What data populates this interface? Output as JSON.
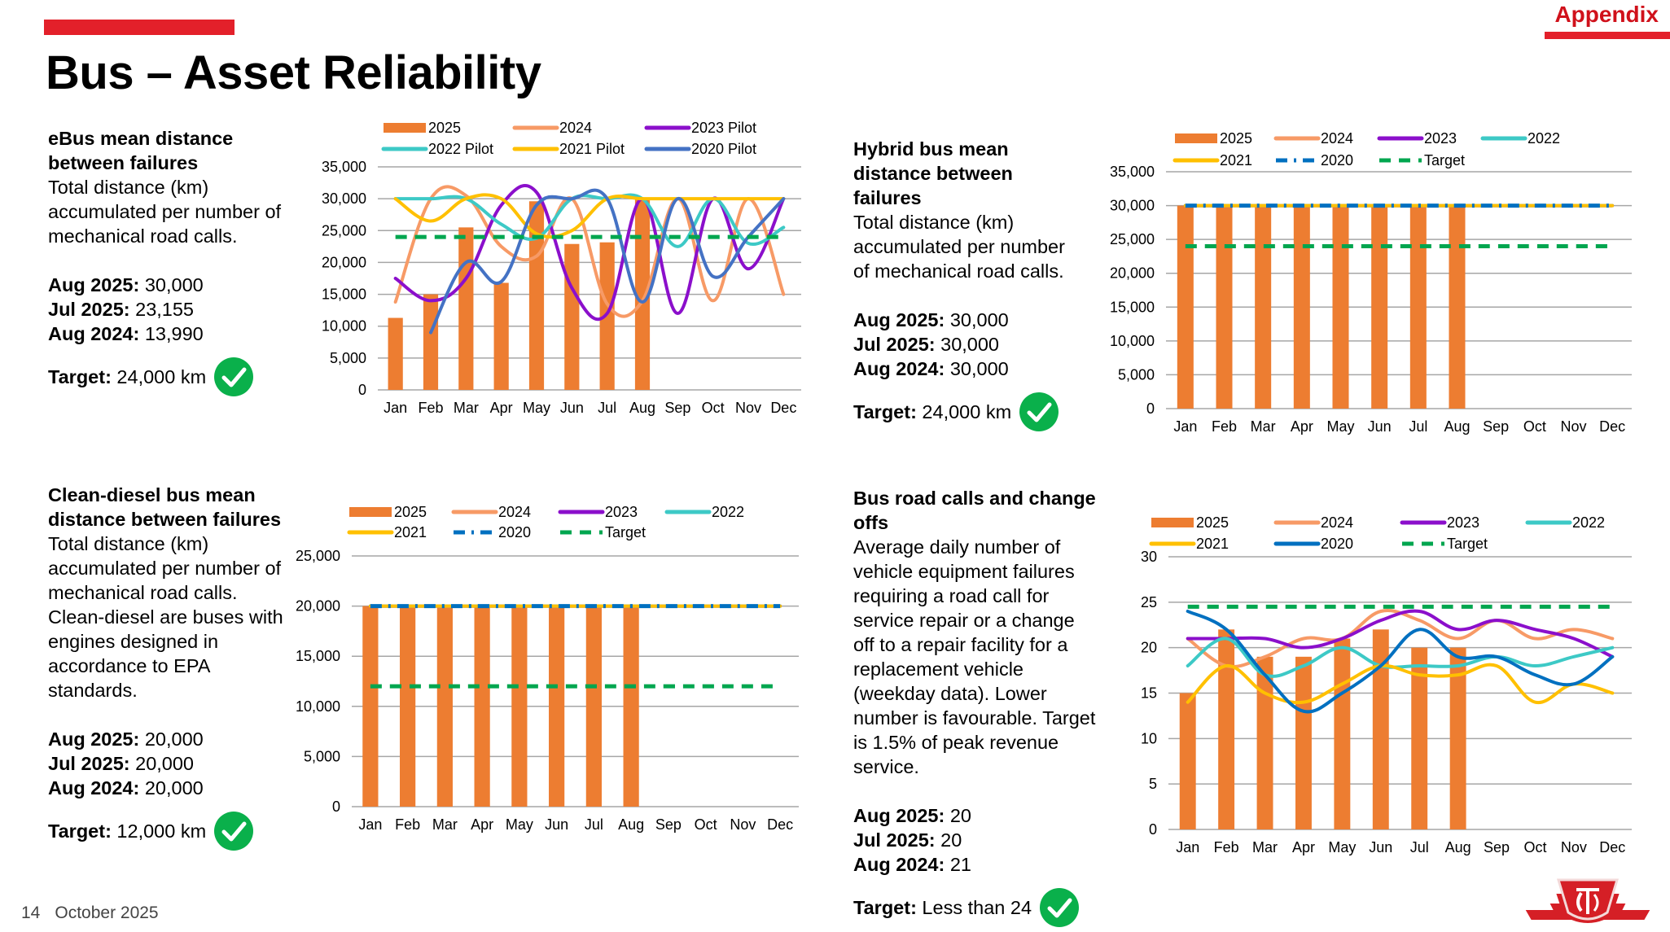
{
  "header": {
    "title": "Bus – Asset Reliability",
    "section": "Appendix"
  },
  "footer": {
    "page": "14",
    "date": "October 2025"
  },
  "panels": [
    {
      "heading": "eBus mean distance between failures",
      "description": "Total distance (km) accumulated per number of mechanical road calls.",
      "stats": [
        {
          "label": "Aug 2025:",
          "value": " 30,000"
        },
        {
          "label": "Jul 2025:",
          "value": " 23,155"
        },
        {
          "label": "Aug 2024:",
          "value": " 13,990"
        }
      ],
      "target": {
        "label": "Target:",
        "value": " 24,000 km",
        "met": true
      }
    },
    {
      "heading": "Hybrid bus mean distance between failures",
      "description": "Total distance (km) accumulated per number of mechanical road calls.",
      "stats": [
        {
          "label": "Aug 2025:",
          "value": " 30,000"
        },
        {
          "label": "Jul 2025:",
          "value": " 30,000"
        },
        {
          "label": "Aug 2024:",
          "value": " 30,000"
        }
      ],
      "target": {
        "label": "Target:",
        "value": " 24,000 km",
        "met": true
      }
    },
    {
      "heading": "Clean-diesel bus mean distance between failures",
      "description": "Total distance (km) accumulated per number of mechanical road calls. Clean-diesel  are buses with engines designed in accordance to EPA standards.",
      "stats": [
        {
          "label": "Aug 2025:",
          "value": " 20,000"
        },
        {
          "label": "Jul 2025:",
          "value": " 20,000"
        },
        {
          "label": "Aug 2024:",
          "value": " 20,000"
        }
      ],
      "target": {
        "label": "Target:",
        "value": " 12,000 km",
        "met": true
      }
    },
    {
      "heading": "Bus road calls and change offs",
      "description": "Average daily number of vehicle equipment failures requiring a road call for service repair or a change off to a repair facility for a replacement vehicle (weekday data). Lower number is favourable. Target is 1.5% of peak revenue service.",
      "stats": [
        {
          "label": "Aug 2025:",
          "value": " 20"
        },
        {
          "label": "Jul 2025:",
          "value": " 20"
        },
        {
          "label": "Aug 2024:",
          "value": " 21"
        }
      ],
      "target": {
        "label": "Target:",
        "value": " Less than 24",
        "met": true
      }
    }
  ],
  "colors": {
    "bar": "#ED7D31",
    "y2024": "#F79A66",
    "y2023": "#8B0FCB",
    "y2022": "#3DC9C6",
    "y2021": "#FFC000",
    "y2020": "#4472C4",
    "y2020b": "#0070C0",
    "target": "#00A64F",
    "check": "#0AB04B",
    "brand": "#E3202A"
  },
  "chart_data": [
    {
      "type": "bar+line",
      "categories": [
        "Jan",
        "Feb",
        "Mar",
        "Apr",
        "May",
        "Jun",
        "Jul",
        "Aug",
        "Sep",
        "Oct",
        "Nov",
        "Dec"
      ],
      "ylim": [
        0,
        35000
      ],
      "yticks": [
        "0",
        "5,000",
        "10,000",
        "15,000",
        "20,000",
        "25,000",
        "30,000",
        "35,000"
      ],
      "legend": "top",
      "grid": true,
      "bar": {
        "name": "2025",
        "values": [
          11300,
          15000,
          25500,
          16800,
          29600,
          22900,
          23155,
          30000
        ]
      },
      "series": [
        {
          "name": "2024",
          "color": "#F79A66",
          "style": "solid",
          "values": [
            13800,
            30000,
            30500,
            22500,
            21000,
            30000,
            13500,
            13990,
            30000,
            14000,
            30000,
            15000
          ]
        },
        {
          "name": "2023 Pilot",
          "color": "#8B0FCB",
          "style": "solid",
          "values": [
            17500,
            14000,
            17500,
            29000,
            31000,
            16000,
            12000,
            30000,
            12000,
            30000,
            19000,
            30000
          ]
        },
        {
          "name": "2022 Pilot",
          "color": "#3DC9C6",
          "style": "solid",
          "values": [
            30000,
            30000,
            30000,
            26000,
            23800,
            30000,
            30000,
            30000,
            22500,
            30000,
            23000,
            25500
          ]
        },
        {
          "name": "2021 Pilot",
          "color": "#FFC000",
          "style": "solid",
          "values": [
            30000,
            26500,
            30000,
            30000,
            24500,
            25000,
            30000,
            30000,
            30000,
            30000,
            30000,
            30000
          ]
        },
        {
          "name": "2020 Pilot",
          "color": "#4472C4",
          "style": "solid",
          "values": [
            null,
            9000,
            20000,
            17000,
            29000,
            30000,
            30000,
            13800,
            30000,
            17800,
            24000,
            30000
          ]
        },
        {
          "name": "",
          "color": "#00A64F",
          "style": "dash",
          "values": [
            24000,
            24000,
            24000,
            24000,
            24000,
            24000,
            24000,
            24000,
            24000,
            24000,
            24000,
            24000
          ]
        }
      ]
    },
    {
      "type": "bar+line",
      "categories": [
        "Jan",
        "Feb",
        "Mar",
        "Apr",
        "May",
        "Jun",
        "Jul",
        "Aug",
        "Sep",
        "Oct",
        "Nov",
        "Dec"
      ],
      "ylim": [
        0,
        35000
      ],
      "yticks": [
        "0",
        "5,000",
        "10,000",
        "15,000",
        "20,000",
        "25,000",
        "30,000",
        "35,000"
      ],
      "legend": "top",
      "grid": true,
      "bar": {
        "name": "2025",
        "values": [
          30000,
          30000,
          30000,
          30000,
          30000,
          30000,
          30000,
          30000
        ]
      },
      "series": [
        {
          "name": "2024",
          "color": "#F79A66",
          "style": "solid",
          "values": [
            30000,
            30000,
            30000,
            30000,
            30000,
            30000,
            30000,
            30000,
            30000,
            30000,
            30000,
            30000
          ]
        },
        {
          "name": "2023",
          "color": "#8B0FCB",
          "style": "solid",
          "values": [
            30000,
            30000,
            30000,
            30000,
            30000,
            30000,
            30000,
            30000,
            30000,
            30000,
            30000,
            30000
          ]
        },
        {
          "name": "2022",
          "color": "#3DC9C6",
          "style": "solid",
          "values": [
            30000,
            30000,
            30000,
            30000,
            30000,
            30000,
            30000,
            30000,
            30000,
            30000,
            30000,
            30000
          ]
        },
        {
          "name": "2021",
          "color": "#FFC000",
          "style": "solid",
          "values": [
            30000,
            30000,
            30000,
            30000,
            30000,
            30000,
            30000,
            30000,
            30000,
            30000,
            30000,
            30000
          ]
        },
        {
          "name": "2020",
          "color": "#0070C0",
          "style": "dashdot",
          "values": [
            30000,
            30000,
            30000,
            30000,
            30000,
            30000,
            30000,
            30000,
            30000,
            30000,
            30000,
            30000
          ]
        },
        {
          "name": "Target",
          "color": "#00A64F",
          "style": "dash",
          "values": [
            24000,
            24000,
            24000,
            24000,
            24000,
            24000,
            24000,
            24000,
            24000,
            24000,
            24000,
            24000
          ]
        }
      ]
    },
    {
      "type": "bar+line",
      "categories": [
        "Jan",
        "Feb",
        "Mar",
        "Apr",
        "May",
        "Jun",
        "Jul",
        "Aug",
        "Sep",
        "Oct",
        "Nov",
        "Dec"
      ],
      "ylim": [
        0,
        25000
      ],
      "yticks": [
        "0",
        "5,000",
        "10,000",
        "15,000",
        "20,000",
        "25,000"
      ],
      "legend": "top",
      "grid": true,
      "bar": {
        "name": "2025",
        "values": [
          20000,
          20000,
          20000,
          20000,
          20000,
          20000,
          20000,
          20000
        ]
      },
      "series": [
        {
          "name": "2024",
          "color": "#F79A66",
          "style": "solid",
          "values": [
            20000,
            20000,
            20000,
            20000,
            20000,
            20000,
            20000,
            20000,
            20000,
            20000,
            20000,
            20000
          ]
        },
        {
          "name": "2023",
          "color": "#8B0FCB",
          "style": "solid",
          "values": [
            20000,
            20000,
            20000,
            20000,
            20000,
            20000,
            20000,
            20000,
            20000,
            20000,
            20000,
            20000
          ]
        },
        {
          "name": "2022",
          "color": "#3DC9C6",
          "style": "solid",
          "values": [
            20000,
            20000,
            20000,
            20000,
            20000,
            20000,
            20000,
            20000,
            20000,
            20000,
            20000,
            20000
          ]
        },
        {
          "name": "2021",
          "color": "#FFC000",
          "style": "solid",
          "values": [
            20000,
            20000,
            20000,
            20000,
            20000,
            20000,
            20000,
            20000,
            20000,
            20000,
            20000,
            20000
          ]
        },
        {
          "name": "2020",
          "color": "#0070C0",
          "style": "dashdot",
          "values": [
            20000,
            20000,
            20000,
            20000,
            20000,
            20000,
            20000,
            20000,
            20000,
            20000,
            20000,
            20000
          ]
        },
        {
          "name": "Target",
          "color": "#00A64F",
          "style": "dash",
          "values": [
            12000,
            12000,
            12000,
            12000,
            12000,
            12000,
            12000,
            12000,
            12000,
            12000,
            12000,
            12000
          ]
        }
      ]
    },
    {
      "type": "bar+line",
      "categories": [
        "Jan",
        "Feb",
        "Mar",
        "Apr",
        "May",
        "Jun",
        "Jul",
        "Aug",
        "Sep",
        "Oct",
        "Nov",
        "Dec"
      ],
      "ylim": [
        0,
        30
      ],
      "yticks": [
        "0",
        "5",
        "10",
        "15",
        "20",
        "25",
        "30"
      ],
      "legend": "top",
      "grid": true,
      "bar": {
        "name": "2025",
        "values": [
          15,
          22,
          19,
          19,
          21,
          22,
          20,
          20
        ]
      },
      "series": [
        {
          "name": "2024",
          "color": "#F79A66",
          "style": "solid",
          "values": [
            21,
            18,
            19,
            21,
            21,
            24,
            23,
            21,
            23,
            21,
            22,
            21
          ]
        },
        {
          "name": "2023",
          "color": "#8B0FCB",
          "style": "solid",
          "values": [
            21,
            21,
            21,
            20,
            21,
            23,
            24,
            22,
            23,
            22,
            21,
            19
          ]
        },
        {
          "name": "2022",
          "color": "#3DC9C6",
          "style": "solid",
          "values": [
            18,
            21,
            17,
            18,
            20,
            18,
            18,
            18,
            19,
            18,
            19,
            20
          ]
        },
        {
          "name": "2021",
          "color": "#FFC000",
          "style": "solid",
          "values": [
            14,
            18,
            15,
            14,
            16,
            18,
            17,
            17,
            18,
            14,
            16,
            15
          ]
        },
        {
          "name": "2020",
          "color": "#0070C0",
          "style": "solid",
          "values": [
            24,
            22,
            17,
            13,
            15,
            18,
            22,
            19,
            19,
            17,
            16,
            19
          ]
        },
        {
          "name": "Target",
          "color": "#00A64F",
          "style": "dash",
          "values": [
            24.5,
            24.5,
            24.5,
            24.5,
            24.5,
            24.5,
            24.5,
            24.5,
            24.5,
            24.5,
            24.5,
            24.5
          ]
        }
      ]
    }
  ]
}
